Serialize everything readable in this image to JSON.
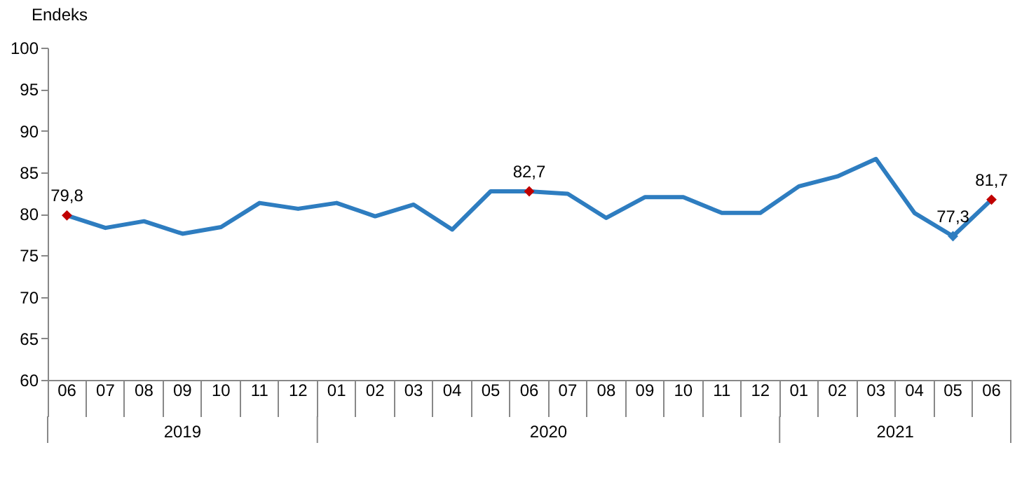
{
  "chart_data": {
    "type": "line",
    "ylabel": "Endeks",
    "categories": [
      "06",
      "07",
      "08",
      "09",
      "10",
      "11",
      "12",
      "01",
      "02",
      "03",
      "04",
      "05",
      "06",
      "07",
      "08",
      "09",
      "10",
      "11",
      "12",
      "01",
      "02",
      "03",
      "04",
      "05",
      "06"
    ],
    "annotations": [
      "2019",
      "2020",
      "2021"
    ],
    "ylim": [
      60,
      100
    ],
    "yticks": [
      60,
      65,
      70,
      75,
      80,
      85,
      90,
      95,
      100
    ],
    "series": [
      {
        "color": "#2e7dc0",
        "values": [
          79.8,
          78.3,
          79.1,
          77.6,
          78.4,
          81.3,
          80.6,
          81.3,
          79.7,
          81.1,
          78.1,
          82.7,
          82.7,
          82.4,
          79.5,
          82.0,
          82.0,
          80.1,
          80.1,
          83.3,
          84.5,
          86.6,
          80.1,
          77.3,
          81.7
        ],
        "value_labels": [
          "79,8",
          null,
          null,
          null,
          null,
          null,
          null,
          null,
          null,
          null,
          null,
          null,
          "82,7",
          null,
          null,
          null,
          null,
          null,
          null,
          null,
          null,
          null,
          null,
          "77,3",
          "81,7"
        ]
      },
      {
        "type": "scatter",
        "marker": "diamond",
        "colors": [
          "#c00000",
          null,
          null,
          null,
          null,
          null,
          null,
          null,
          null,
          null,
          null,
          null,
          "#c00000",
          null,
          null,
          null,
          null,
          null,
          null,
          null,
          null,
          null,
          null,
          "#2e7dc0",
          "#c00000"
        ],
        "values": [
          79.8,
          null,
          null,
          null,
          null,
          null,
          null,
          null,
          null,
          null,
          null,
          null,
          82.7,
          null,
          null,
          null,
          null,
          null,
          null,
          null,
          null,
          null,
          null,
          77.3,
          81.7
        ]
      }
    ]
  }
}
